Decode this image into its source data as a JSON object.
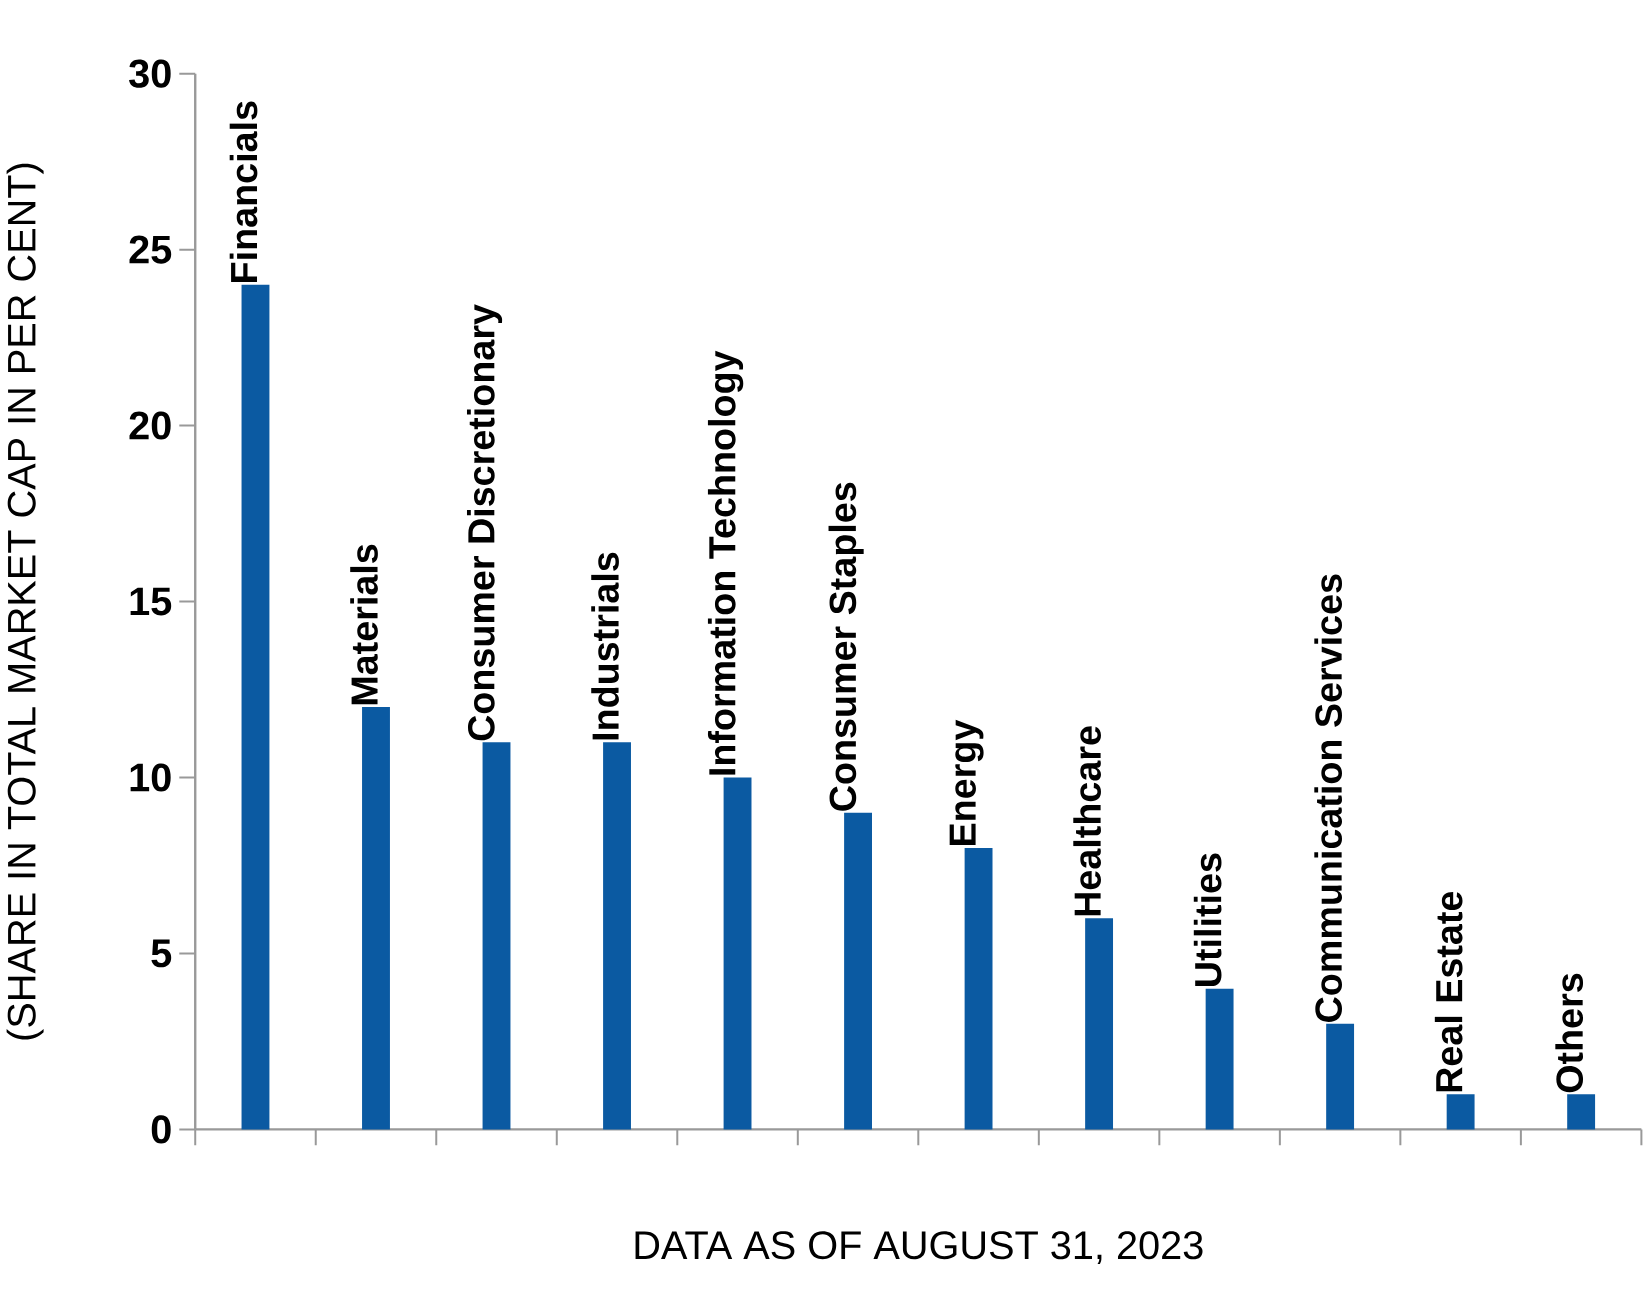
{
  "chart_data": {
    "type": "bar",
    "ylabel": "(SHARE IN TOTAL MARKET CAP IN PER CENT)",
    "xlabel": "DATA AS OF AUGUST 31, 2023",
    "categories": [
      "Financials",
      "Materials",
      "Consumer Discretionary",
      "Industrials",
      "Information Technology",
      "Consumer Staples",
      "Energy",
      "Healthcare",
      "Utilities",
      "Communication Services",
      "Real Estate",
      "Others"
    ],
    "values": [
      24,
      12,
      11,
      11,
      10,
      9,
      8,
      6,
      4,
      3,
      1,
      1
    ],
    "color": "#0b5aa2",
    "ylim": [
      0,
      30
    ],
    "yticks": [
      0,
      5,
      10,
      15,
      20,
      25,
      30
    ],
    "grid": false
  }
}
